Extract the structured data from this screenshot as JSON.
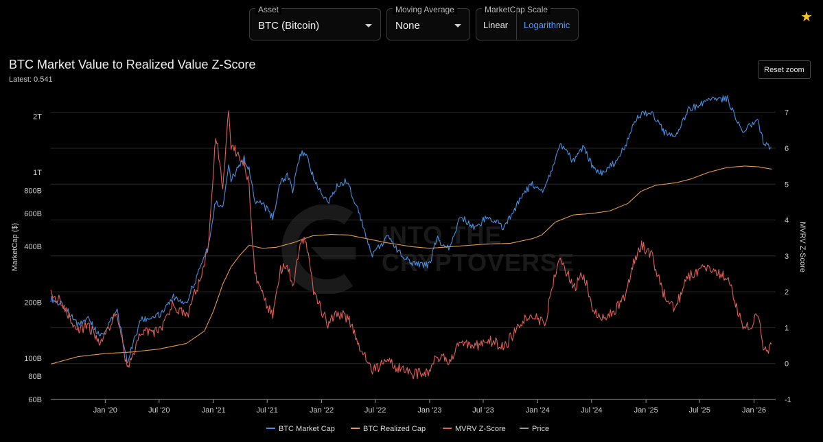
{
  "controls": {
    "asset": {
      "label": "Asset",
      "value": "BTC (Bitcoin)"
    },
    "moving_average": {
      "label": "Moving Average",
      "value": "None"
    },
    "scale": {
      "label": "MarketCap Scale",
      "options": [
        "Linear",
        "Logarithmic"
      ],
      "selected": "Logarithmic"
    }
  },
  "favorite_icon": "star-icon",
  "title": "BTC Market Value to Realized Value Z-Score",
  "latest_label": "Latest:",
  "latest_value": "0.541",
  "reset_zoom": "Reset zoom",
  "watermark": {
    "line1": "INTO THE",
    "line2": "CRYPTOVERSE"
  },
  "colors": {
    "market_cap": "#4a90e2",
    "realized_cap": "#e59a4a",
    "zscore": "#e0605a",
    "price": "#9a9a9a"
  },
  "legend": [
    {
      "name": "BTC Market Cap",
      "color": "#4a90e2"
    },
    {
      "name": "BTC Realized Cap",
      "color": "#e59a4a"
    },
    {
      "name": "MVRV Z-Score",
      "color": "#e0605a"
    },
    {
      "name": "Price",
      "color": "#9a9a9a"
    }
  ],
  "chart_data": {
    "type": "line",
    "title": "BTC Market Value to Realized Value Z-Score",
    "x_axis": {
      "type": "date",
      "range": [
        "2019-07-01",
        "2026-03-15"
      ],
      "tick_labels": [
        "Jan '20",
        "Jul '20",
        "Jan '21",
        "Jul '21",
        "Jan '22",
        "Jul '22",
        "Jan '23",
        "Jul '23",
        "Jan '24",
        "Jul '24",
        "Jan '25",
        "Jul '25",
        "Jan '26"
      ],
      "tick_dates": [
        "2020-01-01",
        "2020-07-01",
        "2021-01-01",
        "2021-07-01",
        "2022-01-01",
        "2022-07-01",
        "2023-01-01",
        "2023-07-01",
        "2024-01-01",
        "2024-07-01",
        "2025-01-01",
        "2025-07-01",
        "2026-01-01"
      ]
    },
    "y_left": {
      "label": "MarketCap ($)",
      "scale": "log",
      "range": [
        60000000000,
        2400000000000
      ],
      "ticks": [
        60000000000,
        80000000000,
        100000000000,
        200000000000,
        400000000000,
        600000000000,
        800000000000,
        1000000000000,
        2000000000000
      ],
      "tick_labels": [
        "60B",
        "80B",
        "100B",
        "200B",
        "400B",
        "600B",
        "800B",
        "1T",
        "2T"
      ]
    },
    "y_right": {
      "label": "MVRV Z-Score",
      "range": [
        -1,
        7.3
      ],
      "ticks": [
        -1,
        0,
        1,
        2,
        3,
        4,
        5,
        6,
        7
      ],
      "tick_labels": [
        "-1",
        "0",
        "1",
        "2",
        "3",
        "4",
        "5",
        "6",
        "7"
      ]
    },
    "grid": true,
    "legend_position": "bottom",
    "series": [
      {
        "name": "BTC Market Cap",
        "axis": "left",
        "color": "#4a90e2",
        "points": [
          [
            "2019-07-01",
            210
          ],
          [
            "2019-08-15",
            190
          ],
          [
            "2019-10-01",
            150
          ],
          [
            "2019-11-01",
            165
          ],
          [
            "2019-12-15",
            130
          ],
          [
            "2020-02-10",
            180
          ],
          [
            "2020-03-15",
            95
          ],
          [
            "2020-05-01",
            160
          ],
          [
            "2020-07-01",
            170
          ],
          [
            "2020-08-15",
            215
          ],
          [
            "2020-10-01",
            200
          ],
          [
            "2020-11-15",
            300
          ],
          [
            "2020-12-15",
            400
          ],
          [
            "2021-01-08",
            700
          ],
          [
            "2021-02-01",
            650
          ],
          [
            "2021-02-21",
            1080
          ],
          [
            "2021-03-01",
            900
          ],
          [
            "2021-04-14",
            1200
          ],
          [
            "2021-05-01",
            1050
          ],
          [
            "2021-05-20",
            700
          ],
          [
            "2021-06-15",
            680
          ],
          [
            "2021-07-20",
            570
          ],
          [
            "2021-08-15",
            880
          ],
          [
            "2021-09-07",
            960
          ],
          [
            "2021-09-25",
            800
          ],
          [
            "2021-10-20",
            1230
          ],
          [
            "2021-11-10",
            1300
          ],
          [
            "2021-12-05",
            920
          ],
          [
            "2022-01-22",
            690
          ],
          [
            "2022-02-15",
            820
          ],
          [
            "2022-03-28",
            900
          ],
          [
            "2022-05-10",
            600
          ],
          [
            "2022-06-18",
            360
          ],
          [
            "2022-08-15",
            450
          ],
          [
            "2022-09-20",
            370
          ],
          [
            "2022-11-10",
            320
          ],
          [
            "2022-12-31",
            320
          ],
          [
            "2023-01-25",
            440
          ],
          [
            "2023-03-10",
            390
          ],
          [
            "2023-04-15",
            580
          ],
          [
            "2023-06-10",
            500
          ],
          [
            "2023-07-15",
            590
          ],
          [
            "2023-09-10",
            500
          ],
          [
            "2023-10-25",
            680
          ],
          [
            "2023-12-10",
            860
          ],
          [
            "2024-01-25",
            800
          ],
          [
            "2024-03-14",
            1420
          ],
          [
            "2024-05-01",
            1150
          ],
          [
            "2024-06-05",
            1380
          ],
          [
            "2024-07-05",
            1060
          ],
          [
            "2024-08-05",
            1000
          ],
          [
            "2024-09-10",
            1100
          ],
          [
            "2024-10-20",
            1350
          ],
          [
            "2024-11-20",
            1850
          ],
          [
            "2024-12-17",
            2070
          ],
          [
            "2025-01-20",
            2080
          ],
          [
            "2025-02-28",
            1670
          ],
          [
            "2025-04-08",
            1510
          ],
          [
            "2025-05-22",
            2150
          ],
          [
            "2025-07-14",
            2360
          ],
          [
            "2025-08-14",
            2450
          ],
          [
            "2025-10-06",
            2500
          ],
          [
            "2025-10-20",
            2150
          ],
          [
            "2025-11-21",
            1700
          ],
          [
            "2025-12-20",
            1760
          ],
          [
            "2026-01-14",
            1900
          ],
          [
            "2026-02-05",
            1400
          ],
          [
            "2026-03-01",
            1350
          ]
        ]
      },
      {
        "name": "BTC Realized Cap",
        "axis": "left",
        "color": "#e59a4a",
        "points": [
          [
            "2019-07-01",
            93
          ],
          [
            "2019-10-01",
            102
          ],
          [
            "2020-01-01",
            106
          ],
          [
            "2020-04-01",
            108
          ],
          [
            "2020-07-01",
            112
          ],
          [
            "2020-10-01",
            120
          ],
          [
            "2020-12-01",
            140
          ],
          [
            "2021-01-01",
            180
          ],
          [
            "2021-02-01",
            250
          ],
          [
            "2021-03-01",
            310
          ],
          [
            "2021-04-01",
            360
          ],
          [
            "2021-05-01",
            405
          ],
          [
            "2021-06-15",
            390
          ],
          [
            "2021-08-01",
            395
          ],
          [
            "2021-10-01",
            420
          ],
          [
            "2021-12-01",
            455
          ],
          [
            "2022-02-01",
            463
          ],
          [
            "2022-04-01",
            460
          ],
          [
            "2022-06-01",
            440
          ],
          [
            "2022-08-01",
            420
          ],
          [
            "2022-11-01",
            398
          ],
          [
            "2023-01-01",
            390
          ],
          [
            "2023-04-01",
            400
          ],
          [
            "2023-07-01",
            410
          ],
          [
            "2023-10-01",
            415
          ],
          [
            "2023-12-15",
            440
          ],
          [
            "2024-01-15",
            460
          ],
          [
            "2024-03-01",
            540
          ],
          [
            "2024-05-01",
            590
          ],
          [
            "2024-07-01",
            600
          ],
          [
            "2024-09-01",
            620
          ],
          [
            "2024-11-01",
            680
          ],
          [
            "2024-12-15",
            790
          ],
          [
            "2025-02-01",
            850
          ],
          [
            "2025-04-15",
            880
          ],
          [
            "2025-06-01",
            920
          ],
          [
            "2025-08-01",
            1000
          ],
          [
            "2025-10-01",
            1060
          ],
          [
            "2025-12-01",
            1080
          ],
          [
            "2026-01-15",
            1070
          ],
          [
            "2026-03-01",
            1040
          ]
        ]
      },
      {
        "name": "MVRV Z-Score",
        "axis": "right",
        "color": "#e0605a",
        "points": [
          [
            "2019-07-01",
            2.0
          ],
          [
            "2019-08-15",
            1.6
          ],
          [
            "2019-10-01",
            0.9
          ],
          [
            "2019-11-01",
            1.1
          ],
          [
            "2019-12-15",
            0.6
          ],
          [
            "2020-02-10",
            1.4
          ],
          [
            "2020-03-15",
            -0.2
          ],
          [
            "2020-05-01",
            0.9
          ],
          [
            "2020-07-01",
            0.9
          ],
          [
            "2020-08-15",
            1.6
          ],
          [
            "2020-10-01",
            1.3
          ],
          [
            "2020-11-15",
            2.3
          ],
          [
            "2020-12-15",
            3.2
          ],
          [
            "2021-01-08",
            6.4
          ],
          [
            "2021-02-01",
            5.0
          ],
          [
            "2021-02-21",
            7.0
          ],
          [
            "2021-03-01",
            6.1
          ],
          [
            "2021-04-14",
            5.6
          ],
          [
            "2021-05-01",
            5.0
          ],
          [
            "2021-05-20",
            2.5
          ],
          [
            "2021-06-15",
            1.9
          ],
          [
            "2021-07-20",
            1.3
          ],
          [
            "2021-08-15",
            2.6
          ],
          [
            "2021-09-07",
            2.8
          ],
          [
            "2021-09-25",
            2.1
          ],
          [
            "2021-10-20",
            3.3
          ],
          [
            "2021-11-10",
            3.4
          ],
          [
            "2021-12-05",
            2.0
          ],
          [
            "2022-01-22",
            1.1
          ],
          [
            "2022-02-15",
            1.4
          ],
          [
            "2022-03-28",
            1.3
          ],
          [
            "2022-05-10",
            0.5
          ],
          [
            "2022-06-18",
            -0.2
          ],
          [
            "2022-08-15",
            0.05
          ],
          [
            "2022-09-20",
            -0.15
          ],
          [
            "2022-11-10",
            -0.3
          ],
          [
            "2022-12-31",
            -0.2
          ],
          [
            "2023-01-25",
            0.2
          ],
          [
            "2023-03-10",
            0.1
          ],
          [
            "2023-04-15",
            0.6
          ],
          [
            "2023-06-10",
            0.5
          ],
          [
            "2023-07-15",
            0.7
          ],
          [
            "2023-09-10",
            0.45
          ],
          [
            "2023-10-25",
            1.0
          ],
          [
            "2023-12-10",
            1.4
          ],
          [
            "2024-01-25",
            1.1
          ],
          [
            "2024-03-14",
            3.0
          ],
          [
            "2024-05-01",
            2.1
          ],
          [
            "2024-06-05",
            2.5
          ],
          [
            "2024-07-05",
            1.5
          ],
          [
            "2024-08-05",
            1.3
          ],
          [
            "2024-09-10",
            1.4
          ],
          [
            "2024-10-20",
            1.8
          ],
          [
            "2024-11-20",
            2.8
          ],
          [
            "2024-12-17",
            3.3
          ],
          [
            "2025-01-20",
            3.0
          ],
          [
            "2025-02-28",
            2.0
          ],
          [
            "2025-04-08",
            1.5
          ],
          [
            "2025-05-22",
            2.4
          ],
          [
            "2025-07-14",
            2.7
          ],
          [
            "2025-08-14",
            2.6
          ],
          [
            "2025-10-06",
            2.4
          ],
          [
            "2025-10-20",
            2.0
          ],
          [
            "2025-11-21",
            1.1
          ],
          [
            "2025-12-20",
            1.1
          ],
          [
            "2026-01-14",
            1.3
          ],
          [
            "2026-02-05",
            0.3
          ],
          [
            "2026-03-01",
            0.54
          ]
        ]
      },
      {
        "name": "Price",
        "axis": "left",
        "color": "#9a9a9a",
        "points": []
      }
    ]
  }
}
